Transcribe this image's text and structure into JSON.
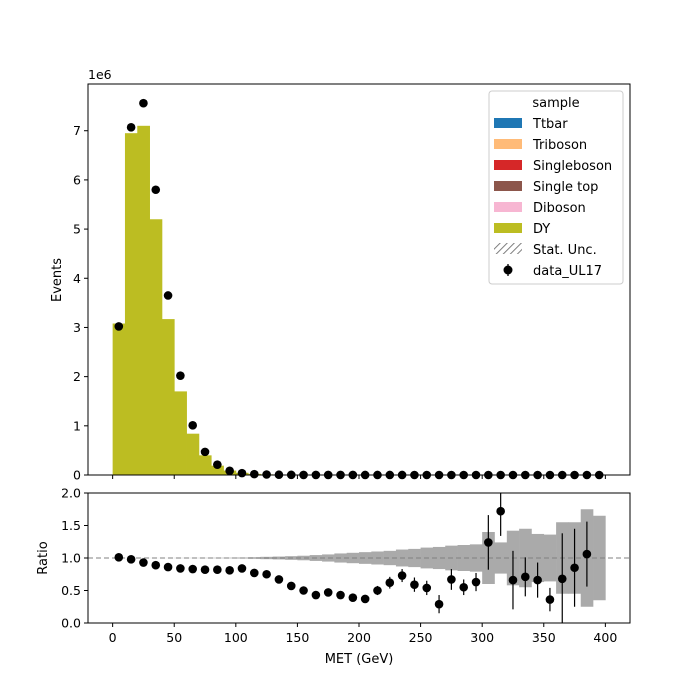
{
  "chart_data": [
    {
      "type": "bar",
      "panel": "main",
      "stacked": true,
      "xlabel": "",
      "ylabel": "Events",
      "offset_text": "1e6",
      "xlim": [
        -20,
        420
      ],
      "ylim": [
        0,
        7.95
      ],
      "y_multiplier": 1000000,
      "grid": false,
      "legend_placement": "top-right",
      "legend_title": "sample",
      "bin_edges": [
        0,
        10,
        20,
        30,
        40,
        50,
        60,
        70,
        80,
        90,
        100,
        110,
        120,
        130,
        140,
        150,
        160,
        170,
        180,
        190,
        200,
        210,
        220,
        230,
        240,
        250,
        260,
        270,
        280,
        290,
        300,
        310,
        320,
        330,
        340,
        350,
        360,
        370,
        380,
        390,
        400
      ],
      "xticks": [
        0,
        50,
        100,
        150,
        200,
        250,
        300,
        350,
        400
      ],
      "yticks": [
        0,
        1,
        2,
        3,
        4,
        5,
        6,
        7
      ],
      "series": [
        {
          "name": "Ttbar",
          "color": "#1f77b4",
          "values": [
            0,
            0,
            0,
            0,
            0,
            0,
            0,
            0,
            0,
            0,
            0,
            0,
            0,
            0,
            0,
            0,
            0,
            0,
            0,
            0,
            0,
            0,
            0,
            0,
            0,
            0,
            0,
            0,
            0,
            0,
            0,
            0,
            0,
            0,
            0,
            0,
            0,
            0,
            0,
            0
          ]
        },
        {
          "name": "Triboson",
          "color": "#ffbb78",
          "values": [
            0,
            0,
            0,
            0,
            0,
            0,
            0,
            0,
            0,
            0,
            0,
            0,
            0,
            0,
            0,
            0,
            0,
            0,
            0,
            0,
            0,
            0,
            0,
            0,
            0,
            0,
            0,
            0,
            0,
            0,
            0,
            0,
            0,
            0,
            0,
            0,
            0,
            0,
            0,
            0
          ]
        },
        {
          "name": "Singleboson",
          "color": "#d62728",
          "values": [
            0,
            0,
            0,
            0,
            0,
            0,
            0,
            0,
            0,
            0,
            0,
            0,
            0,
            0,
            0,
            0,
            0,
            0,
            0,
            0,
            0,
            0,
            0,
            0,
            0,
            0,
            0,
            0,
            0,
            0,
            0,
            0,
            0,
            0,
            0,
            0,
            0,
            0,
            0,
            0
          ]
        },
        {
          "name": "Single top",
          "color": "#8c564b",
          "values": [
            0,
            0,
            0,
            0,
            0,
            0,
            0,
            0,
            0,
            0,
            0,
            0,
            0,
            0,
            0,
            0,
            0,
            0,
            0,
            0,
            0,
            0,
            0,
            0,
            0,
            0,
            0,
            0,
            0,
            0,
            0,
            0,
            0,
            0,
            0,
            0,
            0,
            0,
            0,
            0
          ]
        },
        {
          "name": "Diboson",
          "color": "#f7b6d2",
          "values": [
            0,
            0,
            0,
            0,
            0,
            0,
            0,
            0,
            0,
            0,
            0,
            0,
            0,
            0,
            0,
            0,
            0,
            0,
            0,
            0,
            0,
            0,
            0,
            0,
            0,
            0,
            0,
            0,
            0,
            0,
            0,
            0,
            0,
            0,
            0,
            0,
            0,
            0,
            0,
            0
          ]
        },
        {
          "name": "DY",
          "color": "#bcbd22",
          "values": [
            3.08,
            6.95,
            7.1,
            5.2,
            3.17,
            1.7,
            0.84,
            0.4,
            0.19,
            0.09,
            0.045,
            0.023,
            0.013,
            0.008,
            0.005,
            0.004,
            0.003,
            0.002,
            0.0015,
            0.0012,
            0.001,
            0.0008,
            0.0006,
            0.0005,
            0.0004,
            0.0003,
            0.00025,
            0.0002,
            0.00018,
            0.00015,
            0.00012,
            0.0001,
            9e-05,
            8e-05,
            7e-05,
            6e-05,
            5e-05,
            4e-05,
            3e-05,
            2e-05
          ]
        }
      ],
      "stat_unc": {
        "name": "Stat. Unc.",
        "color": "#808080"
      },
      "data": {
        "name": "data_UL17",
        "color": "#000000",
        "x": [
          5,
          15,
          25,
          35,
          45,
          55,
          65,
          75,
          85,
          95,
          105,
          115,
          125,
          135,
          145,
          155,
          165,
          175,
          185,
          195,
          205,
          215,
          225,
          235,
          245,
          255,
          265,
          275,
          285,
          295,
          305,
          315,
          325,
          335,
          345,
          355,
          365,
          375,
          385,
          395
        ],
        "y": [
          3.02,
          7.07,
          7.56,
          5.8,
          3.65,
          2.02,
          1.01,
          0.47,
          0.21,
          0.085,
          0.038,
          0.018,
          0.01,
          0.0054,
          0.0028,
          0.002,
          0.0013,
          0.00096,
          0.00065,
          0.00048,
          0.00037,
          0.0004,
          0.00036,
          0.00037,
          0.00023,
          0.00017,
          7.5e-05,
          0.00013,
          0.0001,
          9.5e-05,
          0.00015,
          0.00017,
          6e-05,
          6e-05,
          4.5e-05,
          2e-05,
          3.5e-05,
          3.5e-05,
          3.2e-05,
          2e-05
        ]
      }
    },
    {
      "type": "scatter",
      "panel": "ratio",
      "xlabel": "MET (GeV)",
      "ylabel": "Ratio",
      "xlim": [
        -20,
        420
      ],
      "ylim": [
        0,
        2
      ],
      "xticks": [
        0,
        50,
        100,
        150,
        200,
        250,
        300,
        350,
        400
      ],
      "xtick_labels": [
        "0",
        "50",
        "100",
        "150",
        "200",
        "250",
        "300",
        "350",
        "400"
      ],
      "yticks": [
        0,
        0.5,
        1,
        1.5,
        2
      ],
      "ytick_labels": [
        "0.0",
        "0.5",
        "1.0",
        "1.5",
        "2.0"
      ],
      "reference_line": 1.0,
      "grid": false,
      "bin_edges": [
        0,
        10,
        20,
        30,
        40,
        50,
        60,
        70,
        80,
        90,
        100,
        110,
        120,
        130,
        140,
        150,
        160,
        170,
        180,
        190,
        200,
        210,
        220,
        230,
        240,
        250,
        260,
        270,
        280,
        290,
        300,
        310,
        320,
        330,
        340,
        350,
        360,
        370,
        380,
        390,
        400
      ],
      "unc_band": {
        "color": "#aaaaaa",
        "half_width": [
          0.001,
          0.001,
          0.001,
          0.001,
          0.001,
          0.002,
          0.002,
          0.003,
          0.004,
          0.005,
          0.008,
          0.012,
          0.018,
          0.022,
          0.028,
          0.035,
          0.045,
          0.055,
          0.07,
          0.08,
          0.09,
          0.1,
          0.11,
          0.13,
          0.14,
          0.16,
          0.17,
          0.19,
          0.2,
          0.21,
          0.4,
          0.24,
          0.42,
          0.45,
          0.37,
          0.36,
          0.55,
          0.55,
          0.75,
          0.65
        ]
      },
      "points": {
        "x": [
          5,
          15,
          25,
          35,
          45,
          55,
          65,
          75,
          85,
          95,
          105,
          115,
          125,
          135,
          145,
          155,
          165,
          175,
          185,
          195,
          205,
          215,
          225,
          235,
          245,
          255,
          265,
          275,
          285,
          295,
          305,
          315,
          325,
          335,
          345,
          355,
          365,
          375,
          385,
          395
        ],
        "y": [
          1.01,
          0.98,
          0.93,
          0.89,
          0.86,
          0.84,
          0.83,
          0.82,
          0.82,
          0.81,
          0.84,
          0.77,
          0.75,
          0.67,
          0.57,
          0.5,
          0.43,
          0.47,
          0.43,
          0.39,
          0.37,
          0.5,
          0.62,
          0.73,
          0.59,
          0.54,
          0.29,
          0.67,
          0.55,
          0.63,
          1.24,
          1.72,
          0.66,
          0.71,
          0.66,
          0.36,
          0.68,
          0.85,
          1.06,
          null
        ],
        "yerr": [
          0,
          0,
          0,
          0,
          0,
          0,
          0,
          0,
          0,
          0,
          0,
          0,
          0,
          0,
          0,
          0,
          0.02,
          0.03,
          0.03,
          0.03,
          0.05,
          0.07,
          0.09,
          0.1,
          0.11,
          0.11,
          0.14,
          0.16,
          0.12,
          0.14,
          0.42,
          0.38,
          0.45,
          0.3,
          0.27,
          0.18,
          0.7,
          0.6,
          0.5,
          0
        ]
      }
    }
  ]
}
